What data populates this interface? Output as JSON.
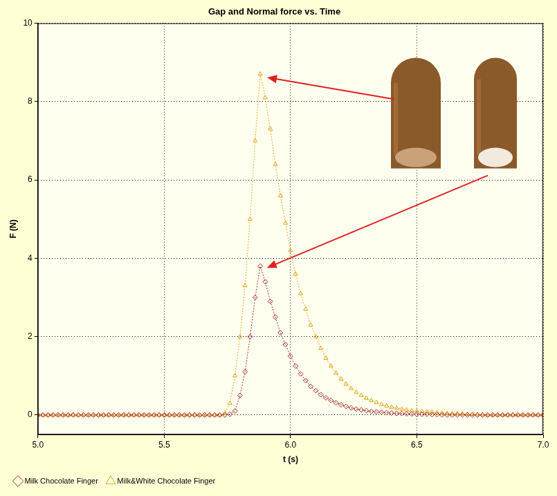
{
  "chart_data": {
    "type": "line",
    "title": "Gap and Normal force vs. Time",
    "x_label": "t (s)",
    "y_label": "F (N)",
    "x": [
      5.0,
      5.02,
      5.04,
      5.06,
      5.08,
      5.1,
      5.12,
      5.14,
      5.16,
      5.18,
      5.2,
      5.22,
      5.24,
      5.26,
      5.28,
      5.3,
      5.32,
      5.34,
      5.36,
      5.38,
      5.4,
      5.42,
      5.44,
      5.46,
      5.48,
      5.5,
      5.52,
      5.54,
      5.56,
      5.58,
      5.6,
      5.62,
      5.64,
      5.66,
      5.68,
      5.7,
      5.72,
      5.74,
      5.76,
      5.78,
      5.8,
      5.82,
      5.84,
      5.86,
      5.88,
      5.9,
      5.92,
      5.94,
      5.96,
      5.98,
      6.0,
      6.02,
      6.04,
      6.06,
      6.08,
      6.1,
      6.12,
      6.14,
      6.16,
      6.18,
      6.2,
      6.22,
      6.24,
      6.26,
      6.28,
      6.3,
      6.32,
      6.34,
      6.36,
      6.38,
      6.4,
      6.42,
      6.44,
      6.46,
      6.48,
      6.5,
      6.52,
      6.54,
      6.56,
      6.58,
      6.6,
      6.62,
      6.64,
      6.66,
      6.68,
      6.7,
      6.72,
      6.74,
      6.76,
      6.78,
      6.8,
      6.82,
      6.84,
      6.86,
      6.88,
      6.9,
      6.92,
      6.94,
      6.96,
      6.98,
      7.0
    ],
    "series": [
      {
        "name": "Milk Chocolate Finger",
        "color": "#A52A2A",
        "marker": "diamond",
        "line_style": "dotted",
        "values": [
          0,
          0,
          0,
          0,
          0,
          0,
          0,
          0,
          0,
          0,
          0,
          0,
          0,
          0,
          0,
          0,
          0,
          0,
          0,
          0,
          0,
          0,
          0,
          0,
          0,
          0,
          0,
          0,
          0,
          0,
          0,
          0,
          0,
          0,
          0,
          0,
          0,
          0,
          0.02,
          0.1,
          0.5,
          1.1,
          2.0,
          3.0,
          3.8,
          3.4,
          2.9,
          2.5,
          2.1,
          1.8,
          1.5,
          1.25,
          1.05,
          0.88,
          0.73,
          0.62,
          0.52,
          0.44,
          0.37,
          0.31,
          0.26,
          0.22,
          0.18,
          0.15,
          0.13,
          0.11,
          0.09,
          0.08,
          0.07,
          0.06,
          0.05,
          0.04,
          0.04,
          0.03,
          0.03,
          0.02,
          0.02,
          0.02,
          0.01,
          0.01,
          0,
          0,
          0,
          0,
          0,
          0,
          0,
          0,
          0,
          0,
          0,
          0,
          0,
          0,
          0,
          0,
          0,
          0,
          0,
          0,
          0
        ]
      },
      {
        "name": "Milk&White Chocolate Finger",
        "color": "#E0A820",
        "marker": "triangle",
        "line_style": "dotted",
        "values": [
          0,
          0,
          0,
          0,
          0,
          0,
          0,
          0,
          0,
          0,
          0,
          0,
          0,
          0,
          0,
          0,
          0,
          0,
          0,
          0,
          0,
          0,
          0,
          0,
          0,
          0,
          0,
          0,
          0,
          0,
          0,
          0,
          0,
          0,
          0,
          0,
          0,
          0.05,
          0.3,
          1.0,
          2.0,
          3.3,
          5.0,
          7.0,
          8.7,
          8.1,
          7.3,
          6.4,
          5.6,
          4.9,
          4.2,
          3.6,
          3.1,
          2.7,
          2.3,
          2.0,
          1.7,
          1.45,
          1.25,
          1.07,
          0.92,
          0.79,
          0.68,
          0.58,
          0.5,
          0.43,
          0.37,
          0.32,
          0.27,
          0.23,
          0.2,
          0.17,
          0.15,
          0.13,
          0.11,
          0.1,
          0.09,
          0.08,
          0.07,
          0.06,
          0.05,
          0.04,
          0.04,
          0.03,
          0.03,
          0.02,
          0.02,
          0.01,
          0.01,
          0,
          0,
          0,
          0,
          0,
          0,
          0,
          0,
          0,
          0,
          0,
          0
        ]
      }
    ],
    "xlim": [
      5,
      7
    ],
    "xticks": [
      {
        "value": 5,
        "label": "5.0"
      },
      5.5,
      {
        "value": 6,
        "label": "6.0"
      },
      6.5,
      {
        "value": 7,
        "label": "7.0"
      }
    ],
    "ylim": [
      -0.5,
      10
    ],
    "yticks": [
      0,
      2,
      4,
      6,
      8,
      10
    ],
    "grid": true,
    "legend": "bottom"
  }
}
